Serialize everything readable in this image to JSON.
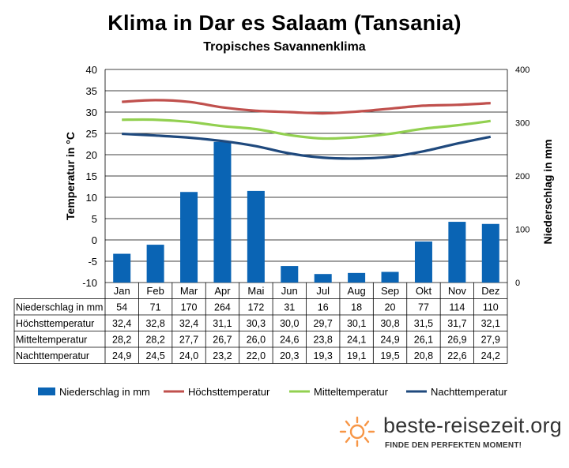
{
  "colors": {
    "bar": "#0a64b4",
    "hoechst": "#c0504d",
    "mittel": "#92d050",
    "nacht": "#1f497d",
    "grid": "#000000",
    "logo_sun": "#f79646"
  },
  "logo": {
    "icon": "sun-icon",
    "text": "beste-reisezeit.org",
    "slogan": "FINDE DEN PERFEKTEN MOMENT!"
  },
  "chart_data": {
    "type": "bar",
    "title": "Klima in Dar es Salaam (Tansania)",
    "subtitle": "Tropisches Savannenklima",
    "categories": [
      "Jan",
      "Feb",
      "Mar",
      "Apr",
      "Mai",
      "Jun",
      "Jul",
      "Aug",
      "Sep",
      "Okt",
      "Nov",
      "Dez"
    ],
    "y_left": {
      "label": "Temperatur in °C",
      "lim": [
        -10,
        40
      ],
      "ticks": [
        "40",
        "35",
        "30",
        "25",
        "20",
        "15",
        "10",
        "5",
        "0",
        "-5",
        "-10"
      ]
    },
    "y_right": {
      "label": "Niederschlag in mm",
      "lim": [
        0,
        400
      ],
      "ticks": [
        "400",
        "300",
        "200",
        "100",
        "0"
      ]
    },
    "grid": "horizontal",
    "legend_position": "bottom",
    "series": [
      {
        "name": "Niederschlag in mm",
        "type": "bar",
        "axis": "right",
        "values": [
          54,
          71,
          170,
          264,
          172,
          31,
          16,
          18,
          20,
          77,
          114,
          110
        ]
      },
      {
        "name": "Höchsttemperatur",
        "type": "line",
        "axis": "left",
        "values": [
          32.4,
          32.8,
          32.4,
          31.1,
          30.3,
          30.0,
          29.7,
          30.1,
          30.8,
          31.5,
          31.7,
          32.1
        ]
      },
      {
        "name": "Mitteltemperatur",
        "type": "line",
        "axis": "left",
        "values": [
          28.2,
          28.2,
          27.7,
          26.7,
          26.0,
          24.6,
          23.8,
          24.1,
          24.9,
          26.1,
          26.9,
          27.9
        ]
      },
      {
        "name": "Nachttemperatur",
        "type": "line",
        "axis": "left",
        "values": [
          24.9,
          24.5,
          24.0,
          23.2,
          22.0,
          20.3,
          19.3,
          19.1,
          19.5,
          20.8,
          22.6,
          24.2
        ]
      }
    ],
    "table": [
      {
        "label": "Niederschlag in mm",
        "cells": [
          "54",
          "71",
          "170",
          "264",
          "172",
          "31",
          "16",
          "18",
          "20",
          "77",
          "114",
          "110"
        ]
      },
      {
        "label": "Höchsttemperatur",
        "cells": [
          "32,4",
          "32,8",
          "32,4",
          "31,1",
          "30,3",
          "30,0",
          "29,7",
          "30,1",
          "30,8",
          "31,5",
          "31,7",
          "32,1"
        ]
      },
      {
        "label": "Mitteltemperatur",
        "cells": [
          "28,2",
          "28,2",
          "27,7",
          "26,7",
          "26,0",
          "24,6",
          "23,8",
          "24,1",
          "24,9",
          "26,1",
          "26,9",
          "27,9"
        ]
      },
      {
        "label": "Nachttemperatur",
        "cells": [
          "24,9",
          "24,5",
          "24,0",
          "23,2",
          "22,0",
          "20,3",
          "19,3",
          "19,1",
          "19,5",
          "20,8",
          "22,6",
          "24,2"
        ]
      }
    ]
  }
}
